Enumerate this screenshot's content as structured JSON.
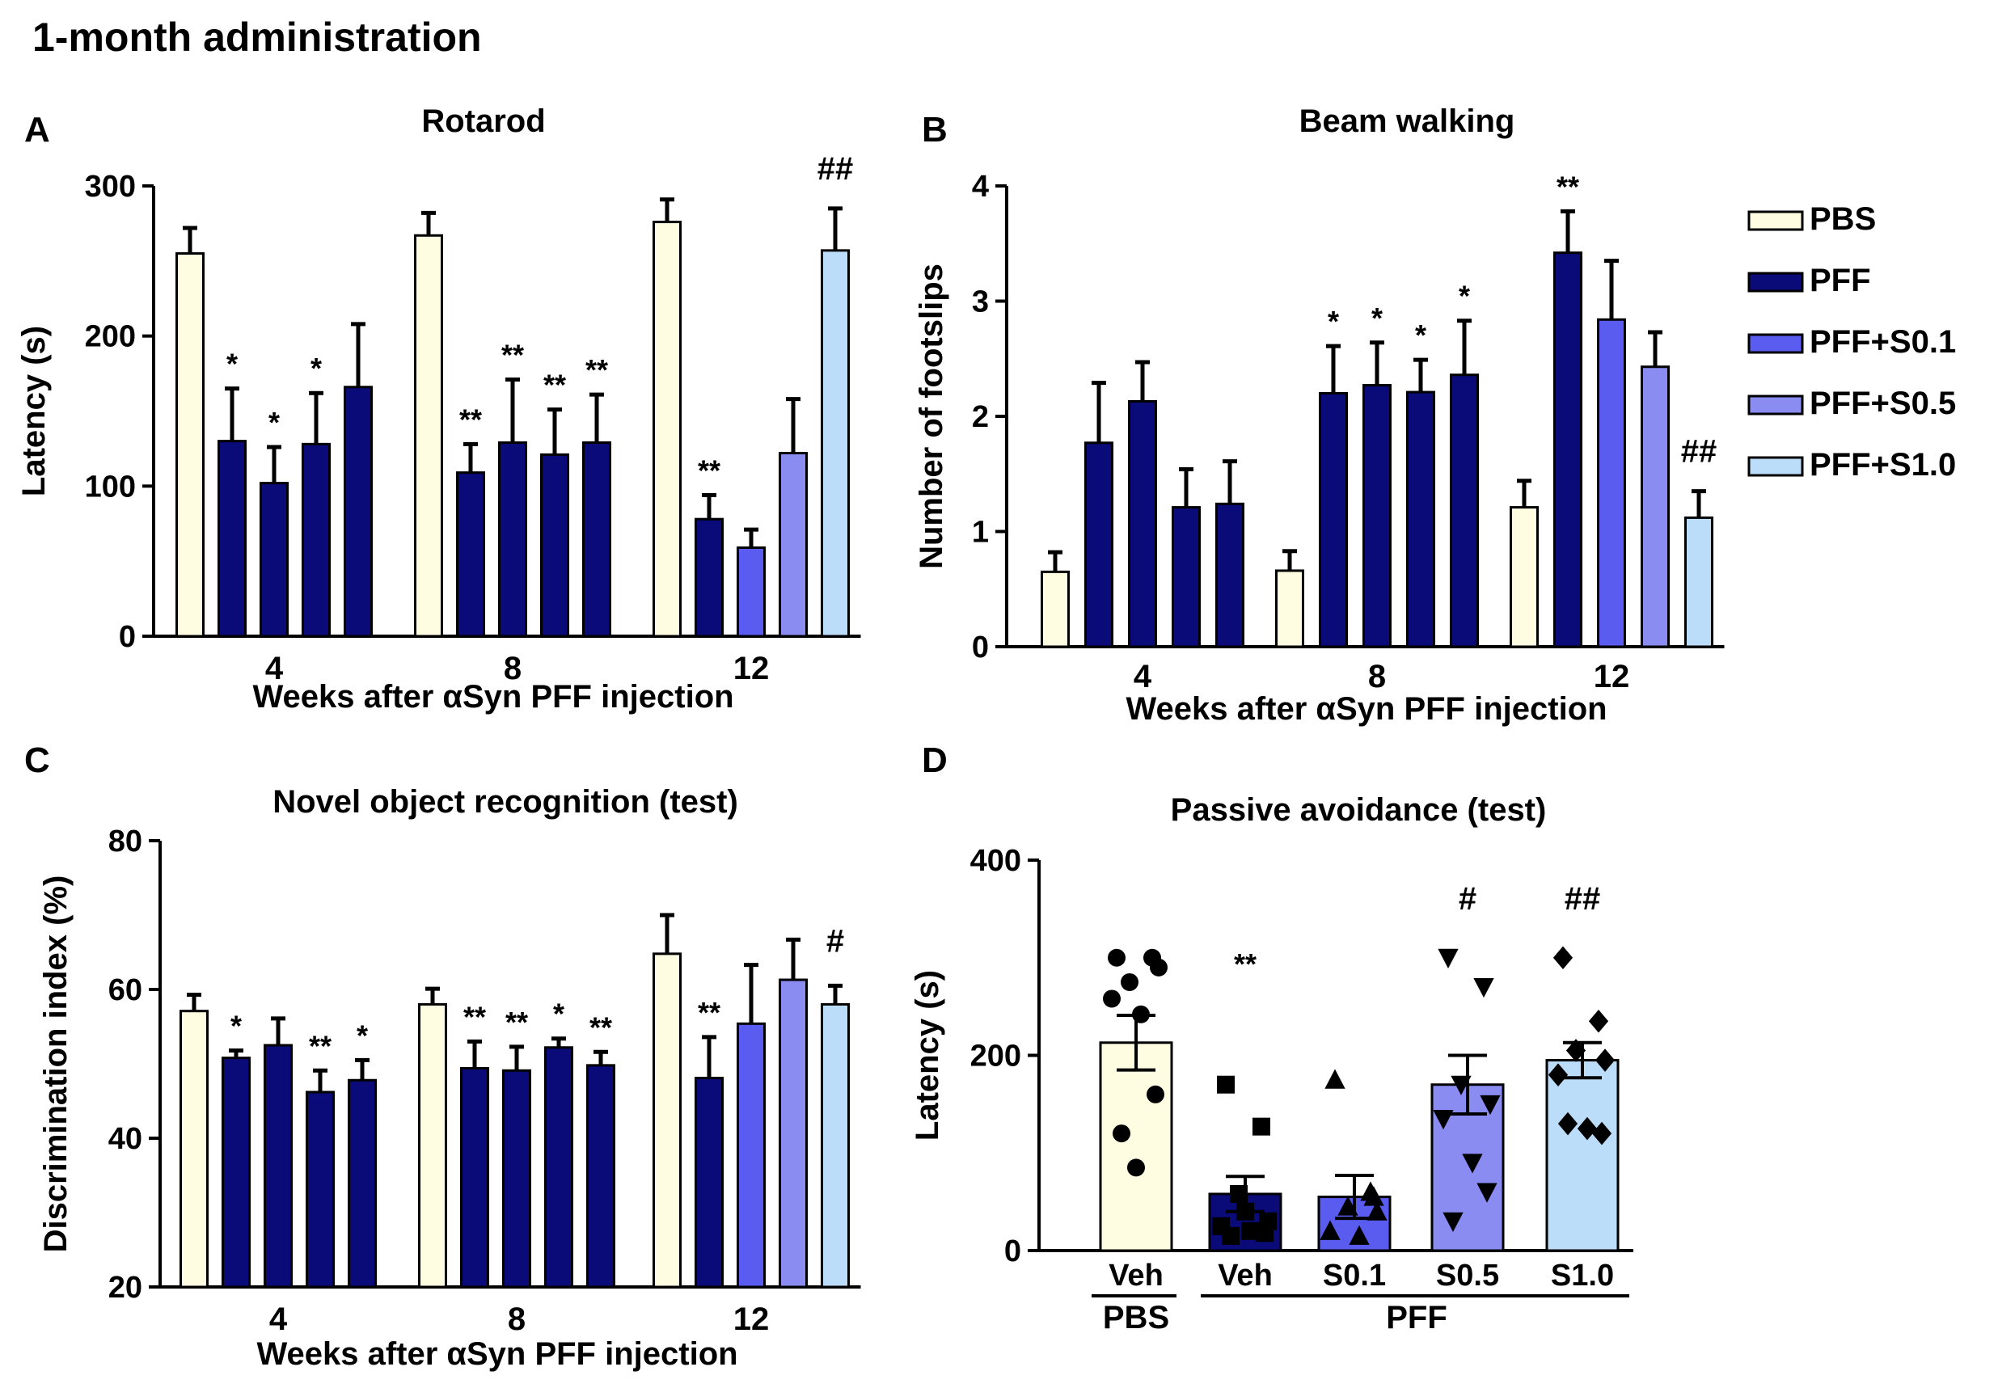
{
  "figure_title": "1-month administration",
  "colors": {
    "PBS": "#FEFDE2",
    "PFF": "#0A0A78",
    "PFF+S0.1": "#5A5CF0",
    "PFF+S0.5": "#8A8CF2",
    "PFF+S1.0": "#BCDDF9"
  },
  "legend": [
    "PBS",
    "PFF",
    "PFF+S0.1",
    "PFF+S0.5",
    "PFF+S1.0"
  ],
  "chart_data": [
    {
      "panel": "A",
      "type": "bar",
      "title": "Rotarod",
      "xlabel": "Weeks after αSyn PFF injection",
      "ylabel": "Latency (s)",
      "ylim": [
        0,
        300
      ],
      "yticks": [
        "0",
        "100",
        "200",
        "300"
      ],
      "groups": [
        {
          "label": "4",
          "bars": [
            {
              "series": "PBS",
              "value": 255,
              "err": 17,
              "mark": ""
            },
            {
              "series": "PFF",
              "value": 130,
              "err": 35,
              "mark": "*"
            },
            {
              "series": "PFF",
              "value": 102,
              "err": 24,
              "mark": "*"
            },
            {
              "series": "PFF",
              "value": 128,
              "err": 34,
              "mark": "*"
            },
            {
              "series": "PFF",
              "value": 166,
              "err": 42,
              "mark": ""
            }
          ]
        },
        {
          "label": "8",
          "bars": [
            {
              "series": "PBS",
              "value": 267,
              "err": 15,
              "mark": ""
            },
            {
              "series": "PFF",
              "value": 109,
              "err": 19,
              "mark": "**"
            },
            {
              "series": "PFF",
              "value": 129,
              "err": 42,
              "mark": "**"
            },
            {
              "series": "PFF",
              "value": 121,
              "err": 30,
              "mark": "**"
            },
            {
              "series": "PFF",
              "value": 129,
              "err": 32,
              "mark": "**"
            }
          ]
        },
        {
          "label": "12",
          "bars": [
            {
              "series": "PBS",
              "value": 276,
              "err": 15,
              "mark": ""
            },
            {
              "series": "PFF",
              "value": 78,
              "err": 16,
              "mark": "**"
            },
            {
              "series": "PFF+S0.1",
              "value": 59,
              "err": 12,
              "mark": ""
            },
            {
              "series": "PFF+S0.5",
              "value": 122,
              "err": 36,
              "mark": ""
            },
            {
              "series": "PFF+S1.0",
              "value": 257,
              "err": 28,
              "mark": "##"
            }
          ]
        }
      ]
    },
    {
      "panel": "B",
      "type": "bar",
      "title": "Beam walking",
      "xlabel": "Weeks after αSyn PFF injection",
      "ylabel": "Number of footslips",
      "ylim": [
        0,
        4
      ],
      "yticks": [
        "0",
        "1",
        "2",
        "3",
        "4"
      ],
      "groups": [
        {
          "label": "4",
          "bars": [
            {
              "series": "PBS",
              "value": 0.65,
              "err": 0.17,
              "mark": ""
            },
            {
              "series": "PFF",
              "value": 1.77,
              "err": 0.52,
              "mark": ""
            },
            {
              "series": "PFF",
              "value": 2.13,
              "err": 0.34,
              "mark": ""
            },
            {
              "series": "PFF",
              "value": 1.21,
              "err": 0.33,
              "mark": ""
            },
            {
              "series": "PFF",
              "value": 1.24,
              "err": 0.37,
              "mark": ""
            }
          ]
        },
        {
          "label": "8",
          "bars": [
            {
              "series": "PBS",
              "value": 0.66,
              "err": 0.17,
              "mark": ""
            },
            {
              "series": "PFF",
              "value": 2.2,
              "err": 0.41,
              "mark": "*"
            },
            {
              "series": "PFF",
              "value": 2.27,
              "err": 0.37,
              "mark": "*"
            },
            {
              "series": "PFF",
              "value": 2.21,
              "err": 0.28,
              "mark": "*"
            },
            {
              "series": "PFF",
              "value": 2.36,
              "err": 0.47,
              "mark": "*"
            }
          ]
        },
        {
          "label": "12",
          "bars": [
            {
              "series": "PBS",
              "value": 1.21,
              "err": 0.23,
              "mark": ""
            },
            {
              "series": "PFF",
              "value": 3.42,
              "err": 0.36,
              "mark": "**"
            },
            {
              "series": "PFF+S0.1",
              "value": 2.84,
              "err": 0.51,
              "mark": ""
            },
            {
              "series": "PFF+S0.5",
              "value": 2.43,
              "err": 0.3,
              "mark": ""
            },
            {
              "series": "PFF+S1.0",
              "value": 1.12,
              "err": 0.23,
              "mark": "##"
            }
          ]
        }
      ]
    },
    {
      "panel": "C",
      "type": "bar",
      "title": "Novel object recognition (test)",
      "xlabel": "Weeks after αSyn PFF injection",
      "ylabel": "Discrimination index (%)",
      "ylim": [
        20,
        80
      ],
      "yticks": [
        "20",
        "40",
        "60",
        "80"
      ],
      "groups": [
        {
          "label": "4",
          "bars": [
            {
              "series": "PBS",
              "value": 57.1,
              "err": 2.2,
              "mark": ""
            },
            {
              "series": "PFF",
              "value": 50.8,
              "err": 1.0,
              "mark": "*"
            },
            {
              "series": "PFF",
              "value": 52.5,
              "err": 3.6,
              "mark": ""
            },
            {
              "series": "PFF",
              "value": 46.2,
              "err": 2.9,
              "mark": "**"
            },
            {
              "series": "PFF",
              "value": 47.8,
              "err": 2.7,
              "mark": "*"
            }
          ]
        },
        {
          "label": "8",
          "bars": [
            {
              "series": "PBS",
              "value": 58.0,
              "err": 2.1,
              "mark": ""
            },
            {
              "series": "PFF",
              "value": 49.4,
              "err": 3.6,
              "mark": "**"
            },
            {
              "series": "PFF",
              "value": 49.1,
              "err": 3.2,
              "mark": "**"
            },
            {
              "series": "PFF",
              "value": 52.2,
              "err": 1.2,
              "mark": "*"
            },
            {
              "series": "PFF",
              "value": 49.8,
              "err": 1.8,
              "mark": "**"
            }
          ]
        },
        {
          "label": "12",
          "bars": [
            {
              "series": "PBS",
              "value": 64.8,
              "err": 5.2,
              "mark": ""
            },
            {
              "series": "PFF",
              "value": 48.1,
              "err": 5.5,
              "mark": "**"
            },
            {
              "series": "PFF+S0.1",
              "value": 55.4,
              "err": 7.9,
              "mark": ""
            },
            {
              "series": "PFF+S0.5",
              "value": 61.3,
              "err": 5.4,
              "mark": ""
            },
            {
              "series": "PFF+S1.0",
              "value": 58.0,
              "err": 2.5,
              "mark": "#"
            }
          ]
        }
      ]
    },
    {
      "panel": "D",
      "type": "scatter",
      "title": "Passive avoidance (test)",
      "ylabel": "Latency (s)",
      "ylim": [
        0,
        400
      ],
      "yticks": [
        "0",
        "200",
        "400"
      ],
      "group_labels": [
        "PBS",
        "PFF"
      ],
      "bars": [
        {
          "label": "Veh",
          "series": "PBS",
          "marker": "circle",
          "value": 213,
          "err": 28,
          "mark": "",
          "points": [
            300,
            300,
            275,
            290,
            258,
            242,
            160,
            120,
            85
          ]
        },
        {
          "label": "Veh",
          "series": "PFF",
          "marker": "square",
          "value": 58,
          "err": 18,
          "mark": "**",
          "points": [
            170,
            127,
            58,
            30,
            25,
            20,
            18,
            15,
            40
          ]
        },
        {
          "label": "S0.1",
          "series": "PFF+S0.1",
          "marker": "triangle-up",
          "value": 55,
          "err": 22,
          "mark": "",
          "points": [
            175,
            60,
            45,
            40,
            20,
            15,
            55
          ]
        },
        {
          "label": "S0.5",
          "series": "PFF+S0.5",
          "marker": "triangle-down",
          "value": 170,
          "err": 30,
          "mark": "#",
          "points": [
            300,
            270,
            170,
            150,
            135,
            90,
            60,
            30
          ]
        },
        {
          "label": "S1.0",
          "series": "PFF+S1.0",
          "marker": "diamond",
          "value": 195,
          "err": 18,
          "mark": "##",
          "points": [
            300,
            235,
            205,
            195,
            180,
            125,
            120,
            130
          ]
        }
      ]
    }
  ]
}
